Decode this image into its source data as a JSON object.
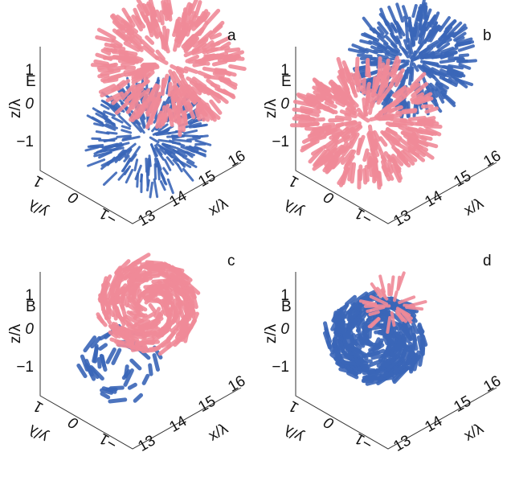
{
  "panels": [
    {
      "letter": "a",
      "field": "E"
    },
    {
      "letter": "b",
      "field": "E"
    },
    {
      "letter": "c",
      "field": "B"
    },
    {
      "letter": "d",
      "field": "B"
    }
  ],
  "axes": {
    "z_label": "z/λ",
    "z_ticks": [
      "1",
      "0",
      "−1"
    ],
    "y_label": "y/λ",
    "y_ticks": [
      "1",
      "0",
      "−1"
    ],
    "x_label": "x/λ",
    "x_ticks": [
      "13",
      "14",
      "15",
      "16"
    ]
  }
}
